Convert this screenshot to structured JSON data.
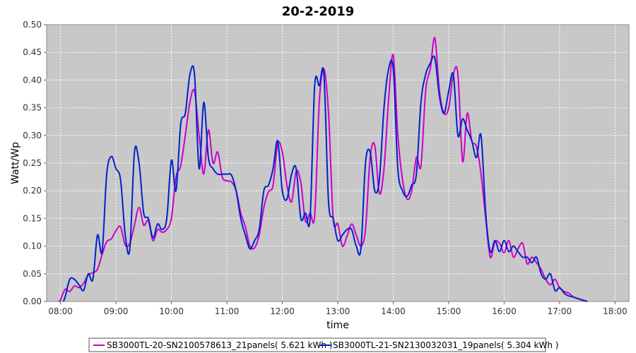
{
  "chart_data": {
    "type": "line",
    "title": "20-2-2019",
    "xlabel": "time",
    "ylabel": "Watt/Wp",
    "xlim": [
      "07:45",
      "18:15"
    ],
    "ylim": [
      0,
      0.5
    ],
    "x_ticks": [
      "08:00",
      "09:00",
      "10:00",
      "11:00",
      "12:00",
      "13:00",
      "14:00",
      "15:00",
      "16:00",
      "17:00",
      "18:00"
    ],
    "y_ticks": [
      "0.00",
      "0.05",
      "0.10",
      "0.15",
      "0.20",
      "0.25",
      "0.30",
      "0.35",
      "0.40",
      "0.45",
      "0.50"
    ],
    "grid": true,
    "legend_position": "bottom",
    "background": "#c8c8c8",
    "series": [
      {
        "name": "SB3000TL-20-SN2100578613_21panels( 5.621 kWh )",
        "color": "#cc00cc",
        "points": [
          [
            "07:58",
            0.0
          ],
          [
            "08:00",
            0.003
          ],
          [
            "08:05",
            0.022
          ],
          [
            "08:10",
            0.018
          ],
          [
            "08:15",
            0.028
          ],
          [
            "08:20",
            0.025
          ],
          [
            "08:25",
            0.033
          ],
          [
            "08:30",
            0.048
          ],
          [
            "08:35",
            0.052
          ],
          [
            "08:40",
            0.058
          ],
          [
            "08:45",
            0.085
          ],
          [
            "08:50",
            0.108
          ],
          [
            "08:55",
            0.113
          ],
          [
            "09:00",
            0.128
          ],
          [
            "09:05",
            0.135
          ],
          [
            "09:10",
            0.102
          ],
          [
            "09:15",
            0.105
          ],
          [
            "09:20",
            0.138
          ],
          [
            "09:25",
            0.17
          ],
          [
            "09:30",
            0.138
          ],
          [
            "09:35",
            0.146
          ],
          [
            "09:40",
            0.11
          ],
          [
            "09:45",
            0.13
          ],
          [
            "09:50",
            0.125
          ],
          [
            "09:55",
            0.13
          ],
          [
            "10:00",
            0.15
          ],
          [
            "10:05",
            0.225
          ],
          [
            "10:10",
            0.245
          ],
          [
            "10:15",
            0.3
          ],
          [
            "10:20",
            0.36
          ],
          [
            "10:25",
            0.38
          ],
          [
            "10:30",
            0.3
          ],
          [
            "10:35",
            0.23
          ],
          [
            "10:40",
            0.31
          ],
          [
            "10:45",
            0.25
          ],
          [
            "10:50",
            0.27
          ],
          [
            "10:55",
            0.225
          ],
          [
            "11:00",
            0.218
          ],
          [
            "11:05",
            0.216
          ],
          [
            "11:10",
            0.2
          ],
          [
            "11:15",
            0.16
          ],
          [
            "11:20",
            0.135
          ],
          [
            "11:25",
            0.1
          ],
          [
            "11:30",
            0.097
          ],
          [
            "11:35",
            0.12
          ],
          [
            "11:40",
            0.17
          ],
          [
            "11:45",
            0.198
          ],
          [
            "11:50",
            0.21
          ],
          [
            "11:55",
            0.285
          ],
          [
            "12:00",
            0.27
          ],
          [
            "12:05",
            0.21
          ],
          [
            "12:10",
            0.18
          ],
          [
            "12:15",
            0.235
          ],
          [
            "12:20",
            0.215
          ],
          [
            "12:25",
            0.145
          ],
          [
            "12:30",
            0.16
          ],
          [
            "12:35",
            0.155
          ],
          [
            "12:40",
            0.36
          ],
          [
            "12:45",
            0.42
          ],
          [
            "12:50",
            0.34
          ],
          [
            "12:55",
            0.15
          ],
          [
            "13:00",
            0.14
          ],
          [
            "13:05",
            0.1
          ],
          [
            "13:10",
            0.118
          ],
          [
            "13:15",
            0.14
          ],
          [
            "13:20",
            0.12
          ],
          [
            "13:25",
            0.1
          ],
          [
            "13:30",
            0.13
          ],
          [
            "13:35",
            0.26
          ],
          [
            "13:40",
            0.282
          ],
          [
            "13:45",
            0.195
          ],
          [
            "13:50",
            0.24
          ],
          [
            "13:55",
            0.365
          ],
          [
            "14:00",
            0.445
          ],
          [
            "14:05",
            0.3
          ],
          [
            "14:10",
            0.22
          ],
          [
            "14:15",
            0.185
          ],
          [
            "14:20",
            0.2
          ],
          [
            "14:25",
            0.26
          ],
          [
            "14:30",
            0.245
          ],
          [
            "14:35",
            0.38
          ],
          [
            "14:40",
            0.42
          ],
          [
            "14:45",
            0.476
          ],
          [
            "14:50",
            0.38
          ],
          [
            "14:55",
            0.34
          ],
          [
            "15:00",
            0.35
          ],
          [
            "15:05",
            0.41
          ],
          [
            "15:10",
            0.41
          ],
          [
            "15:15",
            0.253
          ],
          [
            "15:20",
            0.34
          ],
          [
            "15:25",
            0.29
          ],
          [
            "15:30",
            0.28
          ],
          [
            "15:35",
            0.23
          ],
          [
            "15:40",
            0.15
          ],
          [
            "15:45",
            0.08
          ],
          [
            "15:50",
            0.108
          ],
          [
            "15:55",
            0.105
          ],
          [
            "16:00",
            0.088
          ],
          [
            "16:05",
            0.11
          ],
          [
            "16:10",
            0.08
          ],
          [
            "16:15",
            0.095
          ],
          [
            "16:20",
            0.105
          ],
          [
            "16:25",
            0.068
          ],
          [
            "16:30",
            0.08
          ],
          [
            "16:35",
            0.07
          ],
          [
            "16:40",
            0.058
          ],
          [
            "16:45",
            0.04
          ],
          [
            "16:50",
            0.03
          ],
          [
            "16:55",
            0.04
          ],
          [
            "17:00",
            0.025
          ],
          [
            "17:05",
            0.018
          ],
          [
            "17:10",
            0.015
          ],
          [
            "17:15",
            0.008
          ],
          [
            "17:20",
            0.005
          ],
          [
            "17:25",
            0.002
          ],
          [
            "17:30",
            0.0
          ]
        ]
      },
      {
        "name": "SB3000TL-21-SN2130032031_19panels( 5.304 kWh )",
        "color": "#0022cc",
        "points": [
          [
            "08:03",
            0.0
          ],
          [
            "08:05",
            0.008
          ],
          [
            "08:10",
            0.04
          ],
          [
            "08:15",
            0.04
          ],
          [
            "08:20",
            0.03
          ],
          [
            "08:25",
            0.02
          ],
          [
            "08:30",
            0.05
          ],
          [
            "08:35",
            0.04
          ],
          [
            "08:40",
            0.12
          ],
          [
            "08:45",
            0.09
          ],
          [
            "08:50",
            0.23
          ],
          [
            "08:55",
            0.262
          ],
          [
            "09:00",
            0.24
          ],
          [
            "09:05",
            0.22
          ],
          [
            "09:10",
            0.12
          ],
          [
            "09:15",
            0.095
          ],
          [
            "09:20",
            0.27
          ],
          [
            "09:25",
            0.25
          ],
          [
            "09:30",
            0.16
          ],
          [
            "09:35",
            0.15
          ],
          [
            "09:40",
            0.115
          ],
          [
            "09:45",
            0.14
          ],
          [
            "09:50",
            0.13
          ],
          [
            "09:55",
            0.15
          ],
          [
            "10:00",
            0.255
          ],
          [
            "10:05",
            0.2
          ],
          [
            "10:10",
            0.32
          ],
          [
            "10:15",
            0.34
          ],
          [
            "10:20",
            0.41
          ],
          [
            "10:25",
            0.41
          ],
          [
            "10:30",
            0.24
          ],
          [
            "10:35",
            0.36
          ],
          [
            "10:40",
            0.26
          ],
          [
            "10:45",
            0.24
          ],
          [
            "10:50",
            0.23
          ],
          [
            "10:55",
            0.23
          ],
          [
            "11:00",
            0.23
          ],
          [
            "11:05",
            0.228
          ],
          [
            "11:10",
            0.2
          ],
          [
            "11:15",
            0.15
          ],
          [
            "11:20",
            0.12
          ],
          [
            "11:25",
            0.095
          ],
          [
            "11:30",
            0.11
          ],
          [
            "11:35",
            0.13
          ],
          [
            "11:40",
            0.2
          ],
          [
            "11:45",
            0.21
          ],
          [
            "11:50",
            0.24
          ],
          [
            "11:55",
            0.29
          ],
          [
            "12:00",
            0.2
          ],
          [
            "12:05",
            0.185
          ],
          [
            "12:10",
            0.23
          ],
          [
            "12:15",
            0.24
          ],
          [
            "12:20",
            0.15
          ],
          [
            "12:25",
            0.16
          ],
          [
            "12:30",
            0.15
          ],
          [
            "12:35",
            0.39
          ],
          [
            "12:40",
            0.39
          ],
          [
            "12:45",
            0.41
          ],
          [
            "12:50",
            0.18
          ],
          [
            "12:55",
            0.15
          ],
          [
            "13:00",
            0.11
          ],
          [
            "13:05",
            0.12
          ],
          [
            "13:10",
            0.13
          ],
          [
            "13:15",
            0.13
          ],
          [
            "13:20",
            0.1
          ],
          [
            "13:25",
            0.095
          ],
          [
            "13:30",
            0.25
          ],
          [
            "13:35",
            0.27
          ],
          [
            "13:40",
            0.2
          ],
          [
            "13:45",
            0.22
          ],
          [
            "13:50",
            0.35
          ],
          [
            "13:55",
            0.42
          ],
          [
            "14:00",
            0.42
          ],
          [
            "14:05",
            0.24
          ],
          [
            "14:10",
            0.2
          ],
          [
            "14:15",
            0.19
          ],
          [
            "14:20",
            0.21
          ],
          [
            "14:25",
            0.23
          ],
          [
            "14:30",
            0.36
          ],
          [
            "14:35",
            0.41
          ],
          [
            "14:40",
            0.43
          ],
          [
            "14:45",
            0.44
          ],
          [
            "14:50",
            0.37
          ],
          [
            "14:55",
            0.34
          ],
          [
            "15:00",
            0.38
          ],
          [
            "15:05",
            0.41
          ],
          [
            "15:10",
            0.3
          ],
          [
            "15:15",
            0.33
          ],
          [
            "15:20",
            0.31
          ],
          [
            "15:25",
            0.29
          ],
          [
            "15:30",
            0.26
          ],
          [
            "15:35",
            0.3
          ],
          [
            "15:40",
            0.16
          ],
          [
            "15:45",
            0.09
          ],
          [
            "15:50",
            0.11
          ],
          [
            "15:55",
            0.09
          ],
          [
            "16:00",
            0.11
          ],
          [
            "16:05",
            0.09
          ],
          [
            "16:10",
            0.1
          ],
          [
            "16:15",
            0.09
          ],
          [
            "16:20",
            0.08
          ],
          [
            "16:25",
            0.08
          ],
          [
            "16:30",
            0.07
          ],
          [
            "16:35",
            0.08
          ],
          [
            "16:40",
            0.05
          ],
          [
            "16:45",
            0.04
          ],
          [
            "16:50",
            0.05
          ],
          [
            "16:55",
            0.02
          ],
          [
            "17:00",
            0.025
          ],
          [
            "17:05",
            0.015
          ],
          [
            "17:10",
            0.01
          ],
          [
            "17:15",
            0.008
          ],
          [
            "17:20",
            0.005
          ],
          [
            "17:30",
            0.0
          ]
        ]
      }
    ]
  }
}
